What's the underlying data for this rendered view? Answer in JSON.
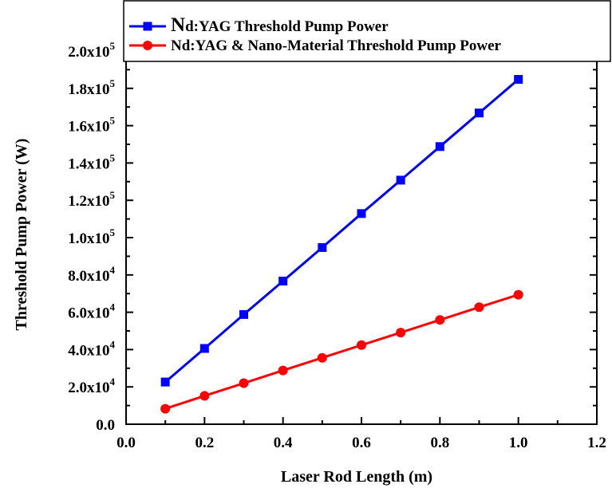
{
  "chart_data": {
    "type": "line",
    "xlabel": "Laser Rod Length (m)",
    "ylabel": "Threshold Pump Power (W)",
    "xlim": [
      0.0,
      1.2
    ],
    "ylim": [
      0,
      200000
    ],
    "x_ticks": [
      0.0,
      0.2,
      0.4,
      0.6,
      0.8,
      1.0,
      1.2
    ],
    "x_tick_labels": [
      "0.0",
      "0.2",
      "0.4",
      "0.6",
      "0.8",
      "1.0",
      "1.2"
    ],
    "y_ticks": [
      0,
      20000,
      40000,
      60000,
      80000,
      100000,
      120000,
      140000,
      160000,
      180000,
      200000
    ],
    "y_tick_labels": [
      {
        "mantissa": "0.0",
        "exp": ""
      },
      {
        "mantissa": "2.0x10",
        "exp": "4"
      },
      {
        "mantissa": "4.0x10",
        "exp": "4"
      },
      {
        "mantissa": "6.0x10",
        "exp": "4"
      },
      {
        "mantissa": "8.0x10",
        "exp": "4"
      },
      {
        "mantissa": "1.0x10",
        "exp": "5"
      },
      {
        "mantissa": "1.2x10",
        "exp": "5"
      },
      {
        "mantissa": "1.4x10",
        "exp": "5"
      },
      {
        "mantissa": "1.6x10",
        "exp": "5"
      },
      {
        "mantissa": "1.8x10",
        "exp": "5"
      },
      {
        "mantissa": "2.0x10",
        "exp": "5"
      }
    ],
    "grid": false,
    "legend_position": "top",
    "x": [
      0.1,
      0.2,
      0.3,
      0.4,
      0.5,
      0.6,
      0.7,
      0.8,
      0.9,
      1.0
    ],
    "series": [
      {
        "name_prefix": "N",
        "name": "d:YAG Threshold Pump Power",
        "color": "#0000ff",
        "marker": "square",
        "values": [
          22600,
          40600,
          58800,
          76700,
          94700,
          112900,
          130800,
          148800,
          166800,
          184800
        ]
      },
      {
        "name_prefix": "",
        "name": "Nd:YAG & Nano-Material Threshold Pump Power",
        "color": "#ff0000",
        "marker": "circle",
        "values": [
          8300,
          15200,
          22000,
          28800,
          35600,
          42400,
          49100,
          55900,
          62700,
          69400
        ]
      }
    ]
  }
}
